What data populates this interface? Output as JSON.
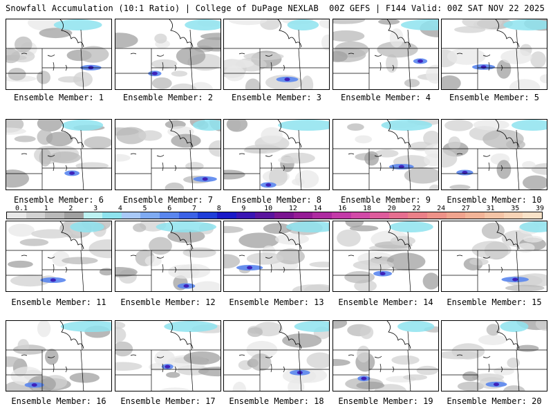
{
  "header": {
    "left": "Snowfall Accumulation (10:1 Ratio) | College of DuPage NEXLAB",
    "right": "00Z GEFS | F144 Valid: 00Z SAT NOV 22 2025"
  },
  "label_prefix": "Ensemble Member: ",
  "members": [
    1,
    2,
    3,
    4,
    5,
    6,
    7,
    8,
    9,
    10,
    11,
    12,
    13,
    14,
    15,
    16,
    17,
    18,
    19,
    20
  ],
  "members_text": [
    "Ensemble Member: 1",
    "Ensemble Member: 2",
    "Ensemble Member: 3",
    "Ensemble Member: 4",
    "Ensemble Member: 5",
    "Ensemble Member: 6",
    "Ensemble Member: 7",
    "Ensemble Member: 8",
    "Ensemble Member: 9",
    "Ensemble Member: 10",
    "Ensemble Member: 11",
    "Ensemble Member: 12",
    "Ensemble Member: 13",
    "Ensemble Member: 14",
    "Ensemble Member: 15",
    "Ensemble Member: 16",
    "Ensemble Member: 17",
    "Ensemble Member: 18",
    "Ensemble Member: 19",
    "Ensemble Member: 20"
  ],
  "colorbar": {
    "labels": [
      "0.1",
      "1",
      "2",
      "3",
      "4",
      "5",
      "6",
      "7",
      "8",
      "9",
      "10",
      "12",
      "14",
      "16",
      "18",
      "20",
      "22",
      "24",
      "27",
      "31",
      "35",
      "39"
    ],
    "colors": [
      "#e8e8e8",
      "#d2d2d2",
      "#b9b9b9",
      "#a0a0a0",
      "#bdf2f2",
      "#8ee3ee",
      "#a9c9f7",
      "#7fabf2",
      "#5a86ee",
      "#3c62e6",
      "#1f3ed8",
      "#1a1ac8",
      "#3a16b4",
      "#5a149e",
      "#7a1490",
      "#951c95",
      "#ae2aa0",
      "#c33aa8",
      "#d24aa8",
      "#de5c9c",
      "#e66e90",
      "#ea8088",
      "#ee9288",
      "#f0a48e",
      "#f2b498",
      "#f4c4a6",
      "#f7d3b6",
      "#f9e2c8"
    ]
  }
}
